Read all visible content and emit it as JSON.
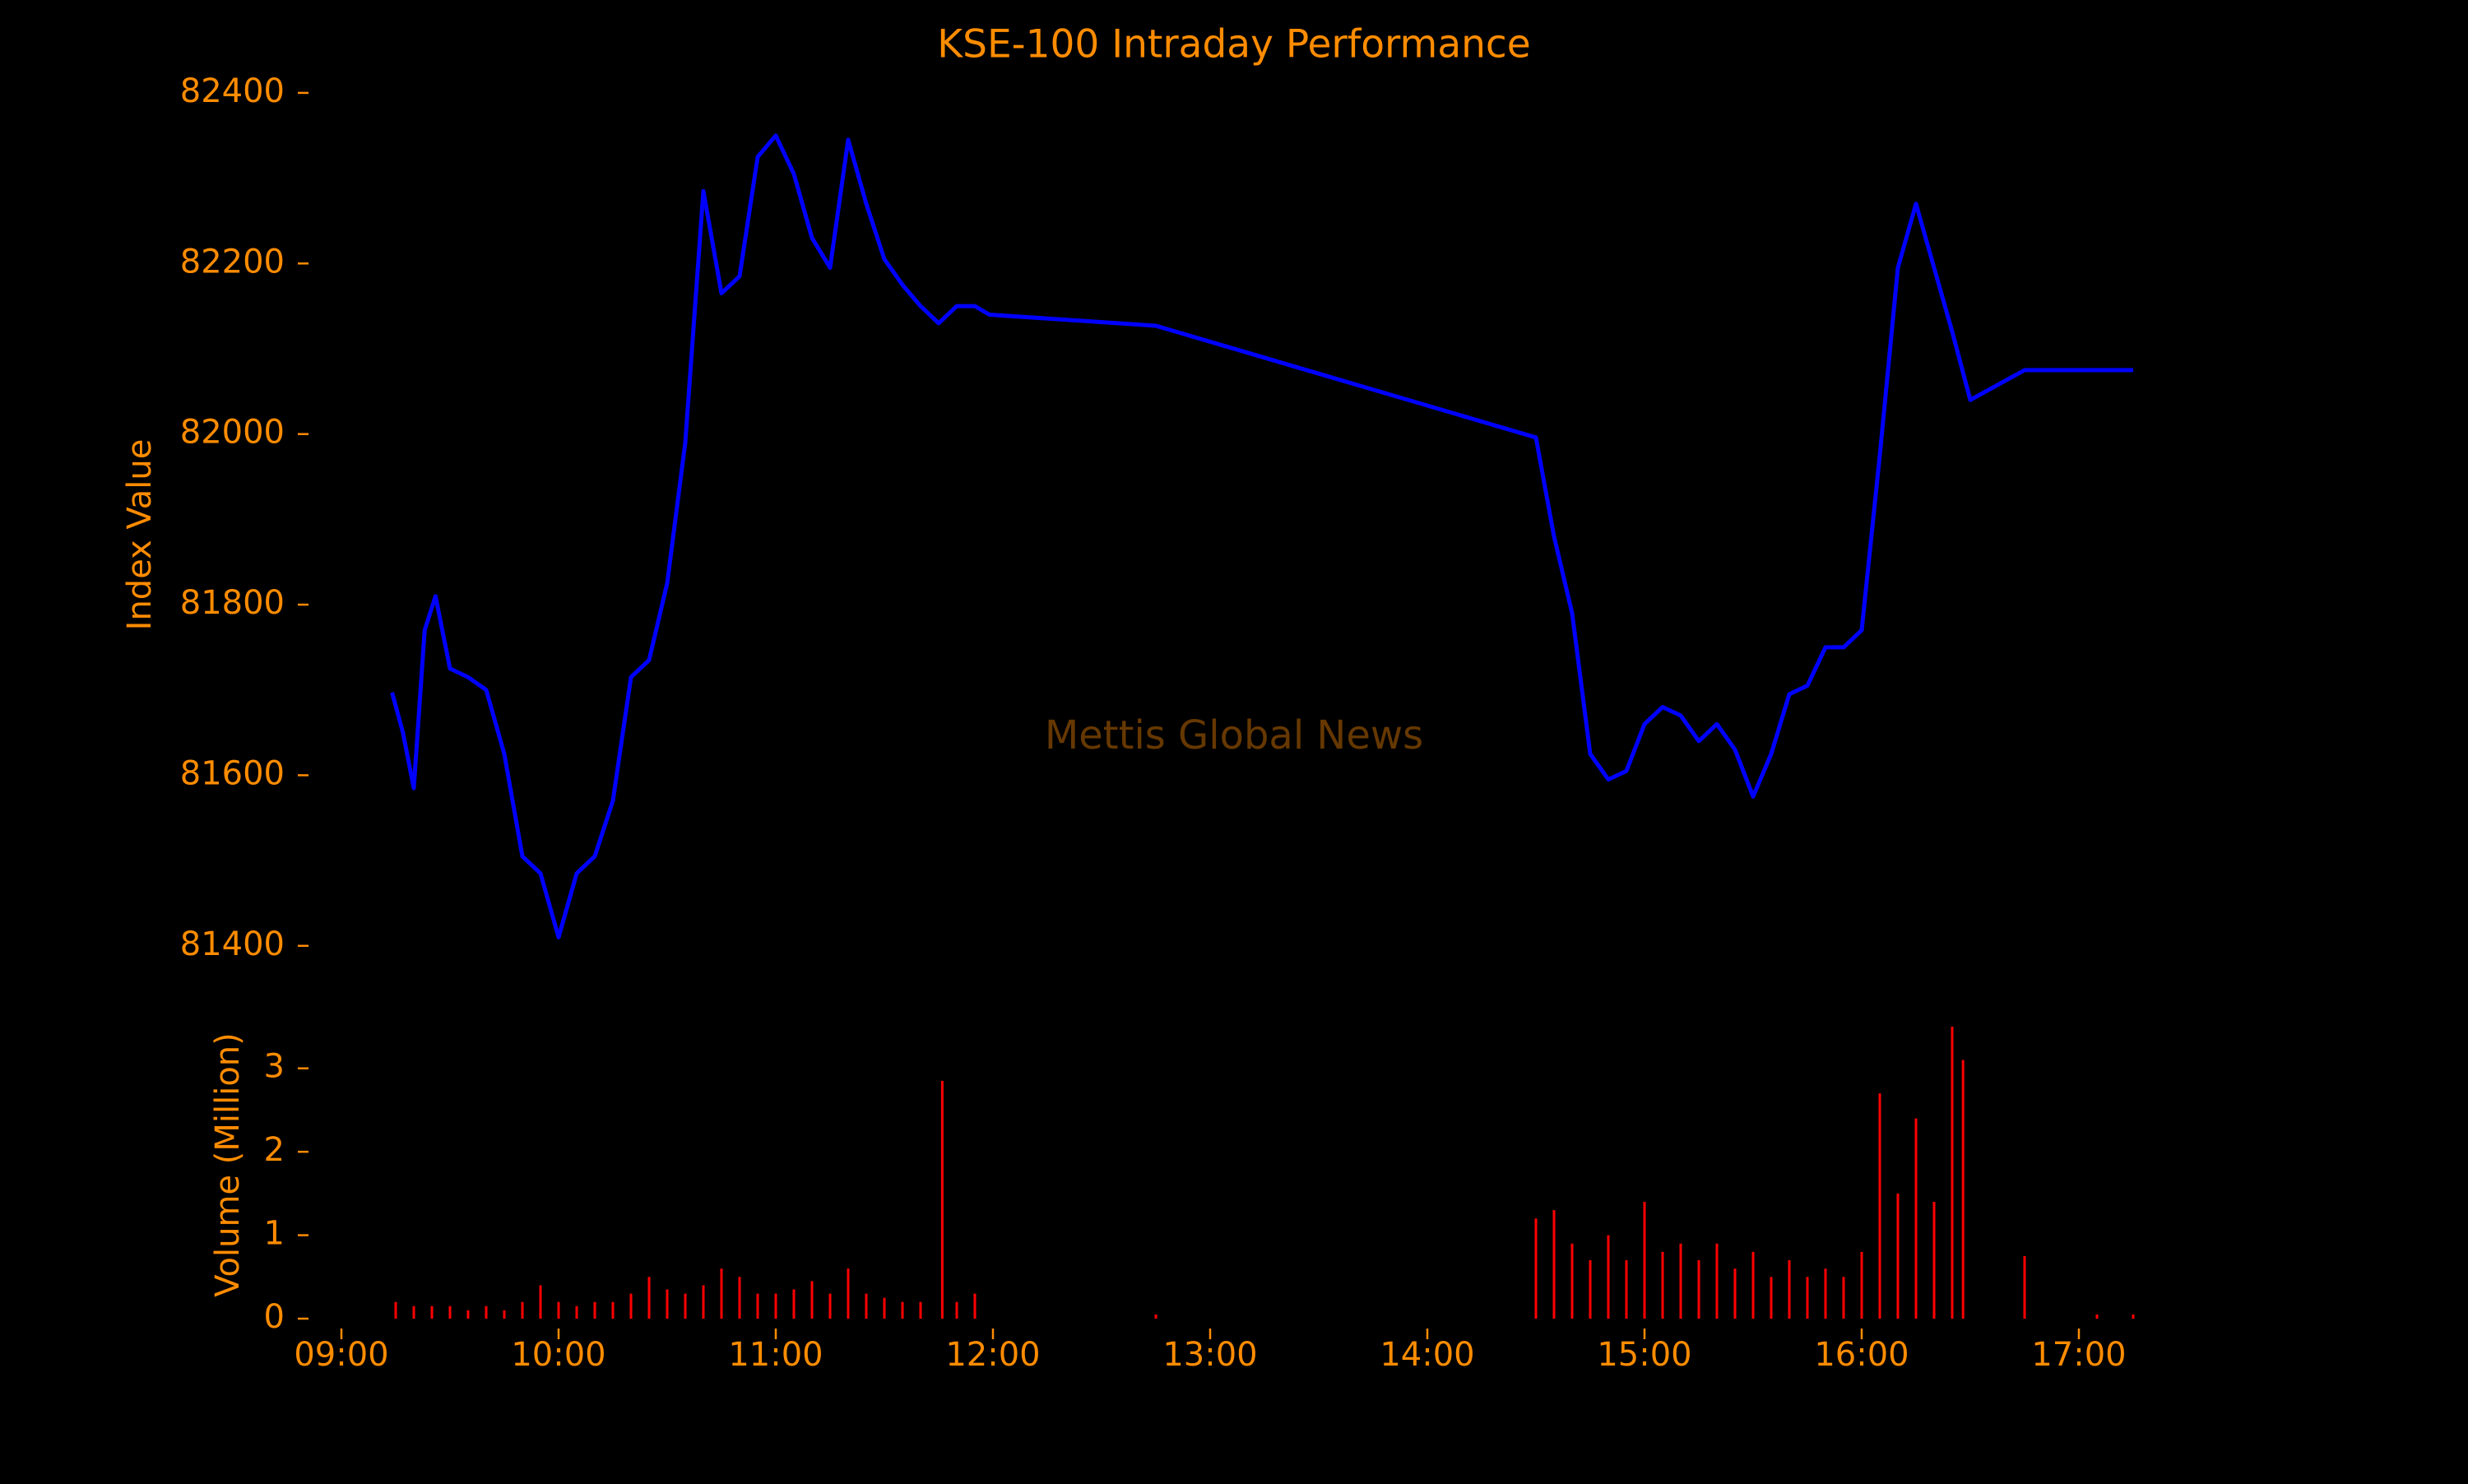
{
  "chart_data": [
    {
      "type": "line",
      "title": "KSE-100 Intraday Performance",
      "y_label": "Index Value",
      "annotation": "Mettis Global News",
      "color": "#0000ff",
      "x": [
        "09:14",
        "09:17",
        "09:20",
        "09:23",
        "09:26",
        "09:30",
        "09:35",
        "09:40",
        "09:45",
        "09:50",
        "09:55",
        "10:00",
        "10:05",
        "10:10",
        "10:15",
        "10:20",
        "10:25",
        "10:30",
        "10:35",
        "10:40",
        "10:45",
        "10:50",
        "10:55",
        "11:00",
        "11:05",
        "11:10",
        "11:15",
        "11:20",
        "11:25",
        "11:30",
        "11:35",
        "11:40",
        "11:45",
        "11:50",
        "11:55",
        "11:59",
        "12:45",
        "14:30",
        "14:35",
        "14:40",
        "14:45",
        "14:50",
        "14:55",
        "15:00",
        "15:05",
        "15:10",
        "15:15",
        "15:20",
        "15:25",
        "15:30",
        "15:35",
        "15:40",
        "15:45",
        "15:50",
        "15:55",
        "16:00",
        "16:05",
        "16:10",
        "16:15",
        "16:20",
        "16:25",
        "16:30",
        "16:45",
        "17:15"
      ],
      "values": [
        81697,
        81650,
        81585,
        81770,
        81810,
        81725,
        81715,
        81700,
        81625,
        81505,
        81485,
        81410,
        81485,
        81505,
        81570,
        81715,
        81735,
        81825,
        81990,
        82285,
        82165,
        82185,
        82325,
        82350,
        82305,
        82230,
        82195,
        82345,
        82270,
        82205,
        82175,
        82150,
        82130,
        82150,
        82150,
        82140,
        82127,
        81996,
        81880,
        81790,
        81625,
        81595,
        81605,
        81660,
        81680,
        81670,
        81640,
        81660,
        81630,
        81575,
        81625,
        81695,
        81705,
        81750,
        81750,
        81770,
        81975,
        82195,
        82270,
        82195,
        82120,
        82040,
        82075,
        82075
      ],
      "xlim": [
        "08:50",
        "17:40"
      ],
      "ylim": [
        81340,
        82425
      ],
      "yticks": [
        81400,
        81600,
        81800,
        82000,
        82200,
        82400
      ]
    },
    {
      "type": "bar",
      "y_label": "Volume (Million)",
      "color": "#ff0000",
      "x": [
        "09:15",
        "09:20",
        "09:25",
        "09:30",
        "09:35",
        "09:40",
        "09:45",
        "09:50",
        "09:55",
        "10:00",
        "10:05",
        "10:10",
        "10:15",
        "10:20",
        "10:25",
        "10:30",
        "10:35",
        "10:40",
        "10:45",
        "10:50",
        "10:55",
        "11:00",
        "11:05",
        "11:10",
        "11:15",
        "11:20",
        "11:25",
        "11:30",
        "11:35",
        "11:40",
        "11:46",
        "11:50",
        "11:55",
        "12:45",
        "14:30",
        "14:35",
        "14:40",
        "14:45",
        "14:50",
        "14:55",
        "15:00",
        "15:05",
        "15:10",
        "15:15",
        "15:20",
        "15:25",
        "15:30",
        "15:35",
        "15:40",
        "15:45",
        "15:50",
        "15:55",
        "16:00",
        "16:05",
        "16:10",
        "16:15",
        "16:20",
        "16:25",
        "16:28",
        "16:45",
        "17:05",
        "17:15"
      ],
      "values": [
        0.2,
        0.15,
        0.15,
        0.15,
        0.1,
        0.15,
        0.1,
        0.2,
        0.4,
        0.2,
        0.15,
        0.2,
        0.2,
        0.3,
        0.5,
        0.35,
        0.3,
        0.4,
        0.6,
        0.5,
        0.3,
        0.3,
        0.35,
        0.45,
        0.3,
        0.6,
        0.3,
        0.25,
        0.2,
        0.2,
        2.85,
        0.2,
        0.3,
        0.05,
        1.2,
        1.3,
        0.9,
        0.7,
        1.0,
        0.7,
        1.4,
        0.8,
        0.9,
        0.7,
        0.9,
        0.6,
        0.8,
        0.5,
        0.7,
        0.5,
        0.6,
        0.5,
        0.8,
        2.7,
        1.5,
        2.4,
        1.4,
        3.5,
        3.1,
        0.75,
        0.05,
        0.05
      ],
      "xlim": [
        "08:50",
        "17:40"
      ],
      "ylim": [
        0,
        3.5
      ],
      "yticks": [
        0,
        1,
        2,
        3
      ],
      "xticks": [
        "09:00",
        "10:00",
        "11:00",
        "12:00",
        "13:00",
        "14:00",
        "15:00",
        "16:00",
        "17:00"
      ]
    }
  ]
}
